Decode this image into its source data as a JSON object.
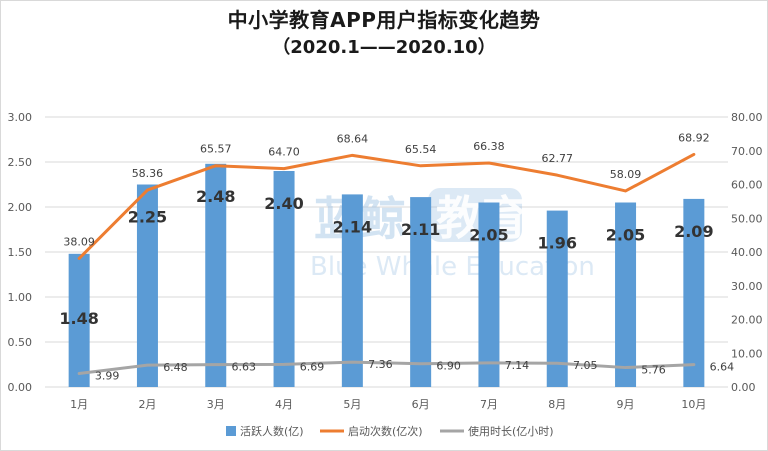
{
  "title": "中小学教育APP用户指标变化趋势",
  "subtitle": "（2020.1——2020.10）",
  "watermark": {
    "cn": "蓝鲸",
    "badge": "教育",
    "en": "Blue Whale Education"
  },
  "colors": {
    "bar": "#5b9bd5",
    "launches": "#ed7d31",
    "duration": "#a5a5a5",
    "grid": "#d9d9d9"
  },
  "chart_data": {
    "type": "bar",
    "categories": [
      "1月",
      "2月",
      "3月",
      "4月",
      "5月",
      "6月",
      "7月",
      "8月",
      "9月",
      "10月"
    ],
    "series": [
      {
        "name": "活跃人数(亿)",
        "type": "bar",
        "axis": "left",
        "values": [
          1.48,
          2.25,
          2.48,
          2.4,
          2.14,
          2.11,
          2.05,
          1.96,
          2.05,
          2.09
        ]
      },
      {
        "name": "启动次数(亿次)",
        "type": "line",
        "axis": "right",
        "values": [
          38.09,
          58.36,
          65.57,
          64.7,
          68.64,
          65.54,
          66.38,
          62.77,
          58.09,
          68.92
        ]
      },
      {
        "name": "使用时长(亿小时)",
        "type": "line",
        "axis": "right",
        "values": [
          3.99,
          6.48,
          6.63,
          6.69,
          7.36,
          6.9,
          7.14,
          7.05,
          5.76,
          6.64
        ]
      }
    ],
    "ylim_left": [
      0,
      3
    ],
    "ylim_right": [
      0,
      80
    ],
    "yticks_left": [
      "0.00",
      "0.50",
      "1.00",
      "1.50",
      "2.00",
      "2.50",
      "3.00"
    ],
    "yticks_right": [
      "0.00",
      "10.00",
      "20.00",
      "30.00",
      "40.00",
      "50.00",
      "60.00",
      "70.00",
      "80.00"
    ],
    "legend": "bottom",
    "grid": true
  }
}
